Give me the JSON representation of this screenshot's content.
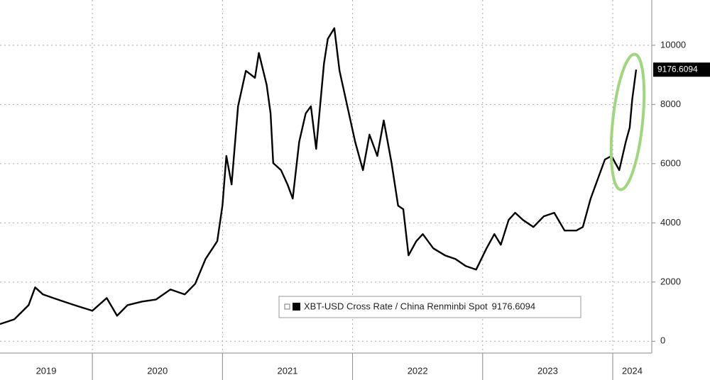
{
  "chart_data": {
    "type": "line",
    "x": [
      2019.29,
      2019.4,
      2019.51,
      2019.56,
      2019.62,
      2019.7,
      2019.78,
      2019.89,
      2020.0,
      2020.11,
      2020.19,
      2020.27,
      2020.38,
      2020.49,
      2020.6,
      2020.71,
      2020.79,
      2020.87,
      2020.96,
      2021.0,
      2021.03,
      2021.07,
      2021.12,
      2021.18,
      2021.25,
      2021.28,
      2021.34,
      2021.37,
      2021.39,
      2021.45,
      2021.5,
      2021.54,
      2021.59,
      2021.64,
      2021.68,
      2021.72,
      2021.78,
      2021.81,
      2021.86,
      2021.9,
      2021.96,
      2022.02,
      2022.08,
      2022.13,
      2022.19,
      2022.24,
      2022.3,
      2022.35,
      2022.39,
      2022.43,
      2022.49,
      2022.54,
      2022.62,
      2022.71,
      2022.79,
      2022.87,
      2022.95,
      2023.03,
      2023.09,
      2023.14,
      2023.2,
      2023.25,
      2023.31,
      2023.39,
      2023.47,
      2023.55,
      2023.63,
      2023.72,
      2023.77,
      2023.83,
      2023.88,
      2023.94,
      2023.99,
      2024.05,
      2024.1,
      2024.13,
      2024.15,
      2024.18
    ],
    "series": [
      {
        "name": "XBT-USD Cross Rate / China Renminbi Spot",
        "color": "#000000",
        "values": [
          580,
          740,
          1220,
          1820,
          1580,
          1460,
          1340,
          1180,
          1030,
          1460,
          860,
          1220,
          1340,
          1410,
          1750,
          1580,
          1940,
          2780,
          3380,
          4580,
          6260,
          5300,
          7940,
          9140,
          8900,
          9740,
          8660,
          7700,
          6020,
          5780,
          5300,
          4820,
          6740,
          7700,
          7940,
          6500,
          9380,
          10220,
          10580,
          9140,
          7940,
          6740,
          5780,
          6980,
          6260,
          7460,
          6020,
          4580,
          4460,
          2900,
          3380,
          3620,
          3140,
          2900,
          2780,
          2540,
          2420,
          3140,
          3620,
          3260,
          4100,
          4340,
          4100,
          3860,
          4220,
          4340,
          3740,
          3740,
          3860,
          4820,
          5420,
          6140,
          6260,
          5780,
          6740,
          7220,
          8180,
          9176.6094
        ]
      }
    ],
    "xlim": [
      2019.29,
      2024.3
    ],
    "xticks": [
      {
        "value": 2019,
        "label": "2019"
      },
      {
        "value": 2020,
        "label": "2020"
      },
      {
        "value": 2021,
        "label": "2021"
      },
      {
        "value": 2022,
        "label": "2022"
      },
      {
        "value": 2023,
        "label": "2023"
      },
      {
        "value": 2024,
        "label": "2024"
      }
    ],
    "ylim": [
      -400,
      11530
    ],
    "yticks": [
      0,
      2000,
      4000,
      6000,
      8000,
      10000
    ],
    "grid": true
  }
}
